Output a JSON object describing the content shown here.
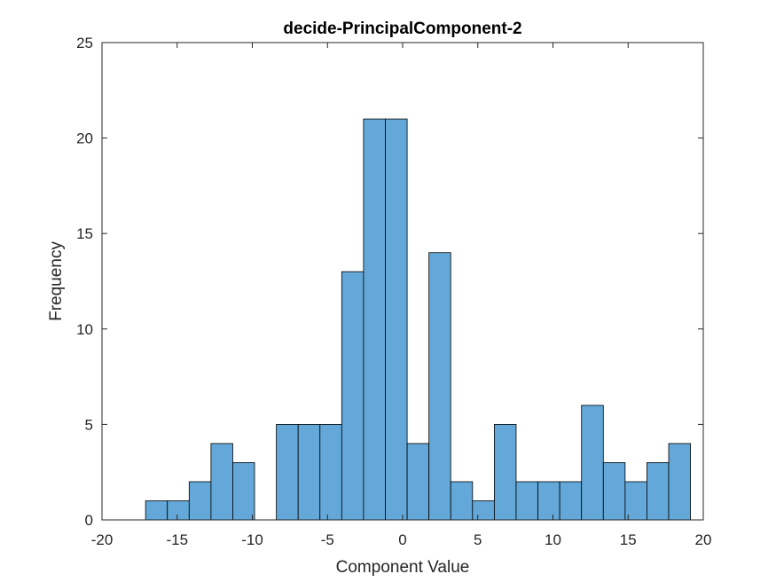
{
  "chart_data": {
    "type": "bar",
    "title": "decide-PrincipalComponent-2",
    "xlabel": "Component Value",
    "ylabel": "Frequency",
    "xlim": [
      -20,
      20
    ],
    "ylim": [
      0,
      25
    ],
    "xticks": [
      -20,
      -15,
      -10,
      -5,
      0,
      5,
      10,
      15,
      20
    ],
    "yticks": [
      0,
      5,
      10,
      15,
      20,
      25
    ],
    "bin_edges": [
      -17.1,
      -15.65,
      -14.2,
      -12.75,
      -11.3,
      -9.85,
      -8.4,
      -6.95,
      -5.5,
      -4.05,
      -2.6,
      -1.15,
      0.3,
      1.75,
      3.2,
      4.65,
      6.1,
      7.55,
      9.0,
      10.45,
      11.9,
      13.35,
      14.8,
      16.25,
      17.7,
      19.15
    ],
    "values": [
      1,
      1,
      2,
      4,
      3,
      0,
      5,
      5,
      5,
      13,
      21,
      21,
      4,
      14,
      2,
      1,
      5,
      2,
      2,
      2,
      6,
      3,
      2,
      3,
      4
    ],
    "grid": false,
    "colors": {
      "bar_fill": "#63a8d8",
      "bar_edge": "#000000",
      "axis": "#262626"
    }
  }
}
